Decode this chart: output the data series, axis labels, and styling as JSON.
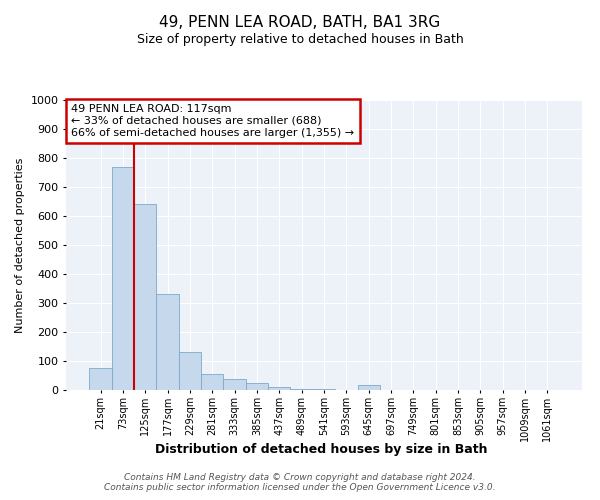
{
  "title": "49, PENN LEA ROAD, BATH, BA1 3RG",
  "subtitle": "Size of property relative to detached houses in Bath",
  "xlabel": "Distribution of detached houses by size in Bath",
  "ylabel": "Number of detached properties",
  "bar_color": "#c6d9ec",
  "bar_edge_color": "#7aaac8",
  "vline_color": "#cc0000",
  "vline_x": 1.5,
  "annotation_box_text": "49 PENN LEA ROAD: 117sqm\n← 33% of detached houses are smaller (688)\n66% of semi-detached houses are larger (1,355) →",
  "annotation_box_color": "#cc0000",
  "categories": [
    "21sqm",
    "73sqm",
    "125sqm",
    "177sqm",
    "229sqm",
    "281sqm",
    "333sqm",
    "385sqm",
    "437sqm",
    "489sqm",
    "541sqm",
    "593sqm",
    "645sqm",
    "697sqm",
    "749sqm",
    "801sqm",
    "853sqm",
    "905sqm",
    "957sqm",
    "1009sqm",
    "1061sqm"
  ],
  "values": [
    75,
    770,
    640,
    330,
    130,
    55,
    38,
    25,
    12,
    5,
    2,
    1,
    18,
    0,
    0,
    0,
    0,
    0,
    0,
    0,
    0
  ],
  "ylim": [
    0,
    1000
  ],
  "yticks": [
    0,
    100,
    200,
    300,
    400,
    500,
    600,
    700,
    800,
    900,
    1000
  ],
  "footer": "Contains HM Land Registry data © Crown copyright and database right 2024.\nContains public sector information licensed under the Open Government Licence v3.0.",
  "plot_bg_color": "#edf2f8",
  "fig_bg_color": "#ffffff"
}
